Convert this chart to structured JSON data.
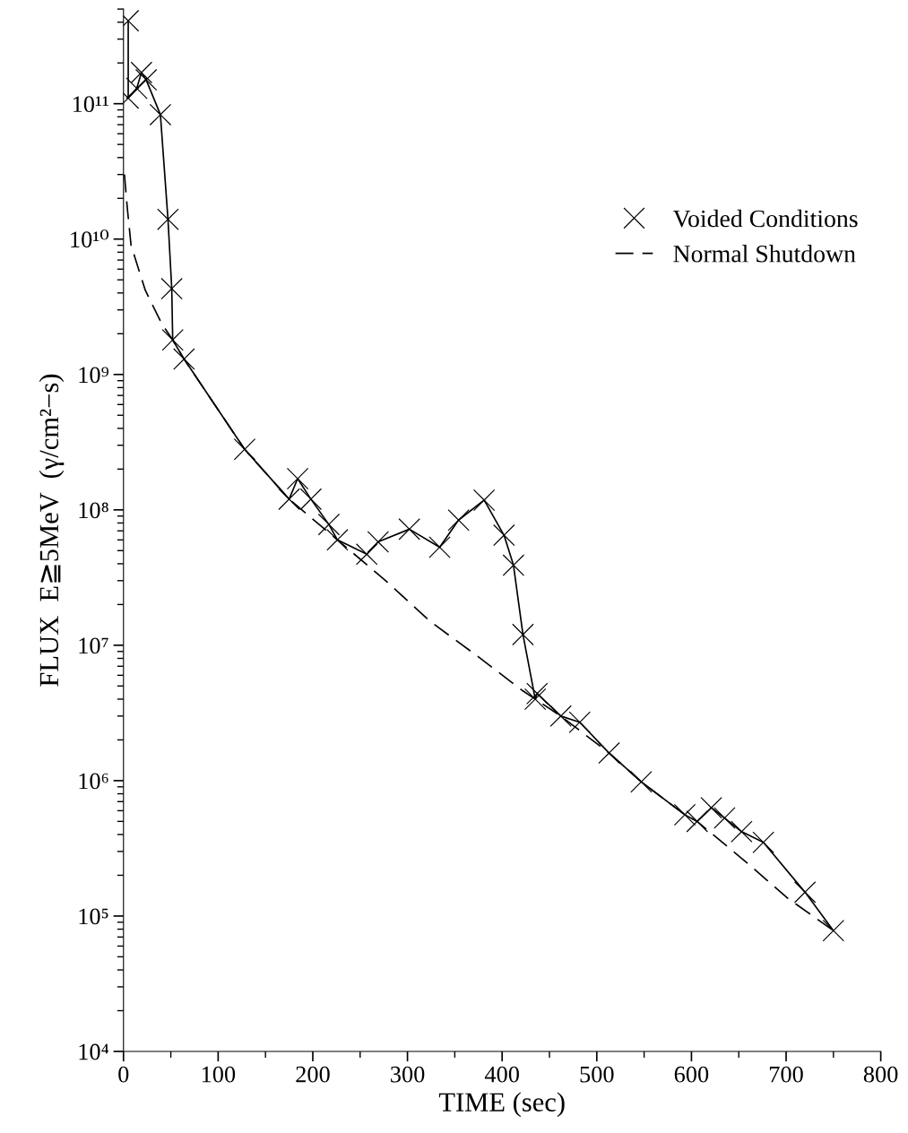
{
  "chart_data": {
    "type": "line",
    "xlabel": "TIME (sec)",
    "ylabel": "FLUX  E≧5MeV  (γ/cm²−s)",
    "log": "y",
    "xlim": [
      0,
      800
    ],
    "ylim": [
      10000,
      500000000000
    ],
    "xticks": [
      0,
      100,
      200,
      300,
      400,
      500,
      600,
      700,
      800
    ],
    "yticks": [
      {
        "value": 10000,
        "label": "10⁴"
      },
      {
        "value": 100000,
        "label": "10⁵"
      },
      {
        "value": 1000000,
        "label": "10⁶"
      },
      {
        "value": 10000000,
        "label": "10⁷"
      },
      {
        "value": 100000000,
        "label": "10⁸"
      },
      {
        "value": 1000000000,
        "label": "10⁹"
      },
      {
        "value": 10000000000,
        "label": "10¹⁰"
      },
      {
        "value": 100000000000,
        "label": "10¹¹"
      }
    ],
    "grid": false,
    "legend": "right",
    "series": [
      {
        "name": "Voided Conditions",
        "color": "#000000",
        "marker": "cross",
        "line_style": "solid",
        "x": [
          5,
          5,
          14,
          19,
          24,
          39,
          47,
          51,
          52,
          64,
          128,
          175,
          184,
          198,
          217,
          226,
          257,
          269,
          302,
          334,
          354,
          381,
          402,
          412,
          422,
          435,
          437,
          462,
          482,
          513,
          547,
          593,
          606,
          621,
          635,
          653,
          676,
          720,
          750
        ],
        "values": [
          410000000000,
          110000000000,
          130000000000,
          170000000000,
          150000000000,
          83000000000,
          14000000000,
          4300000000,
          1800000000,
          1300000000,
          280000000,
          120000000,
          170000000,
          120000000,
          78000000,
          60000000,
          47000000,
          58000000,
          72000000,
          53000000,
          84000000,
          118000000,
          65000000,
          39000000,
          12000000,
          4000000,
          4400000,
          3000000,
          2700000,
          1600000,
          980000,
          560000,
          500000,
          630000,
          530000,
          420000,
          350000,
          150000,
          78000
        ]
      },
      {
        "name": "Normal Shutdown",
        "color": "#000000",
        "marker": "none",
        "line_style": "dashed",
        "x": [
          1,
          4,
          8,
          23,
          40,
          52,
          64,
          128,
          175,
          226,
          277,
          324,
          374,
          422,
          435,
          462,
          513,
          547,
          593,
          606,
          655,
          702,
          750
        ],
        "values": [
          30000000000,
          17000000000,
          9000000000,
          4200000000,
          2400000000,
          1800000000,
          1300000000,
          280000000,
          120000000,
          60000000,
          30000000,
          15000000,
          8300000,
          4600000,
          4000000,
          3000000,
          1600000,
          980000,
          560000,
          500000,
          260000,
          135000,
          78000
        ]
      }
    ]
  }
}
